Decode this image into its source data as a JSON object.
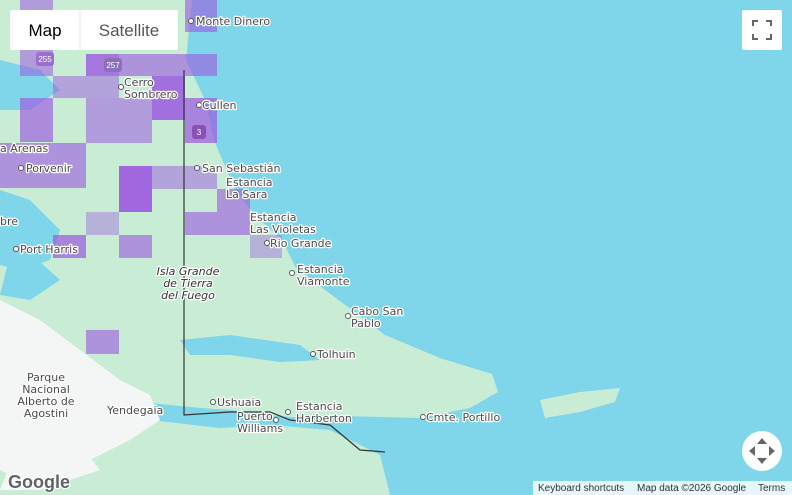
{
  "controls": {
    "map": "Map",
    "satellite": "Satellite"
  },
  "shields": [
    "255",
    "257",
    "3"
  ],
  "places": [
    {
      "lines": [
        "Monte Dinero"
      ]
    },
    {
      "lines": [
        "Cerro",
        "Sombrero"
      ]
    },
    {
      "lines": [
        "Cullen"
      ]
    },
    {
      "lines": [
        "a Arenas"
      ]
    },
    {
      "lines": [
        "Porvenir"
      ]
    },
    {
      "lines": [
        "San Sebastián"
      ]
    },
    {
      "lines": [
        "Estancia",
        "La Sara"
      ]
    },
    {
      "lines": [
        "bre"
      ]
    },
    {
      "lines": [
        "Estancia",
        "Las Violetas"
      ]
    },
    {
      "lines": [
        "Port Harris"
      ]
    },
    {
      "lines": [
        "Rio Grande"
      ]
    },
    {
      "lines": [
        "Isla Grande",
        "de Tierra",
        "del Fuego"
      ]
    },
    {
      "lines": [
        "Estancia",
        "Viamonte"
      ]
    },
    {
      "lines": [
        "Cabo San",
        "Pablo"
      ]
    },
    {
      "lines": [
        "Tolhuin"
      ]
    },
    {
      "lines": [
        "Parque",
        "Nacional",
        "Alberto de",
        "Agostini"
      ]
    },
    {
      "lines": [
        "Yendegaia"
      ]
    },
    {
      "lines": [
        "Ushuaia"
      ]
    },
    {
      "lines": [
        "Estancia",
        "Harberton"
      ]
    },
    {
      "lines": [
        "Puerto",
        "Williams"
      ]
    },
    {
      "lines": [
        "Cmte. Portillo"
      ]
    }
  ],
  "footer": {
    "logo": "Google",
    "shortcuts": "Keyboard shortcuts",
    "mapdata": "Map data ©2026 Google",
    "terms": "Terms"
  }
}
